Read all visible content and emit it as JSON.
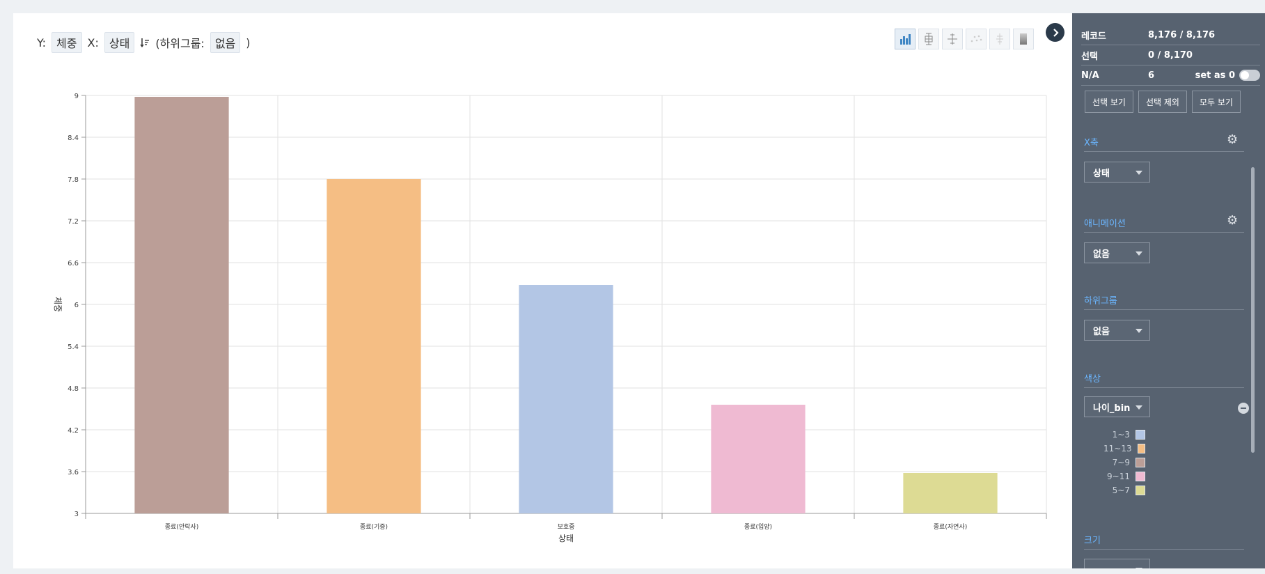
{
  "axis_bar": {
    "y_label": "Y:",
    "y_value": "체중",
    "x_label": "X:",
    "x_value": "상태",
    "subgroup_open": "(하위그룹:",
    "subgroup_value": "없음",
    "subgroup_close": ")"
  },
  "toolbar": {
    "icons": [
      "bar-chart-icon",
      "box-plot-icon",
      "error-bar-icon",
      "scatter-icon",
      "violin-icon",
      "heatmap-icon"
    ]
  },
  "panel": {
    "records_label": "레코드",
    "records_value": "8,176 / 8,176",
    "selection_label": "선택",
    "selection_value": "0 / 8,170",
    "na_label": "N/A",
    "na_value": "6",
    "set_as_zero_label": "set as 0",
    "show_selection": "선택 보기",
    "exclude_selection": "선택 제외",
    "show_all": "모두 보기",
    "x_axis_title": "X축",
    "x_axis_value": "상태",
    "animation_title": "애니메이션",
    "animation_value": "없음",
    "subgroup_title": "하위그룹",
    "subgroup_value": "없음",
    "color_title": "색상",
    "color_value": "나이_bin",
    "size_title": "크기"
  },
  "legend": [
    {
      "label": "1~3",
      "color": "#b3c6e5"
    },
    {
      "label": "11~13",
      "color": "#f5be84"
    },
    {
      "label": "7~9",
      "color": "#bb9e97"
    },
    {
      "label": "9~11",
      "color": "#efbad2"
    },
    {
      "label": "5~7",
      "color": "#dddb94"
    }
  ],
  "chart_data": {
    "type": "bar",
    "categories": [
      "종료(안락사)",
      "종료(기증)",
      "보호중",
      "종료(입양)",
      "종료(자연사)"
    ],
    "values": [
      8.98,
      7.8,
      6.28,
      4.56,
      3.58
    ],
    "colors": [
      "#bb9e97",
      "#f5be84",
      "#b3c6e5",
      "#efbad2",
      "#dddb94"
    ],
    "yticks": [
      "9",
      "8.4",
      "7.8",
      "7.2",
      "6.6",
      "6",
      "5.4",
      "4.8",
      "4.2",
      "3.6",
      "3"
    ],
    "ylim": [
      3,
      9
    ],
    "xlabel": "상태",
    "ylabel": "체중",
    "grid": true
  }
}
